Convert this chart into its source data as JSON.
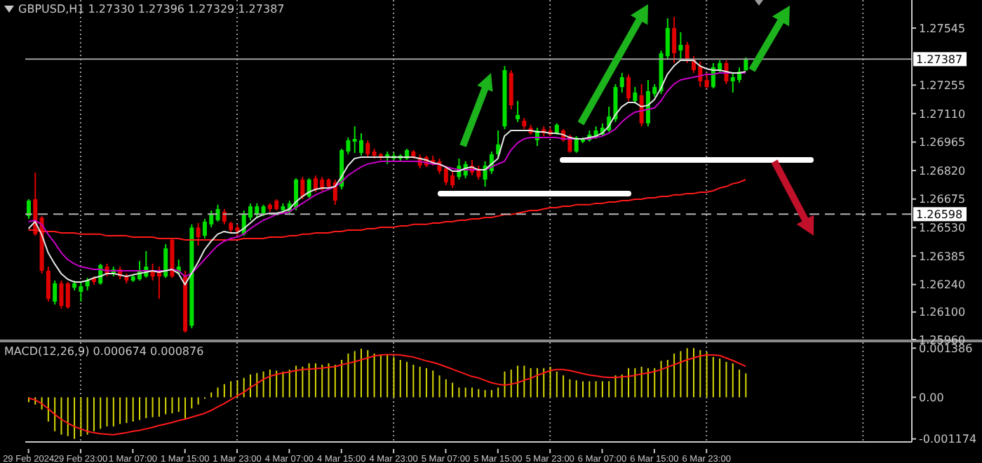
{
  "chart_data": [
    {
      "type": "candlestick",
      "title": "GBPUSD,H1 1.27330 1.27396 1.27329 1.27387",
      "categories": [
        null,
        null,
        null,
        null,
        null,
        null,
        null,
        null,
        null,
        null,
        null,
        null,
        null,
        null,
        null,
        null,
        null,
        null,
        null,
        null,
        null,
        null,
        null,
        null,
        null,
        null,
        null,
        null,
        null,
        null,
        null,
        null,
        null,
        null,
        null,
        null,
        null,
        null,
        null,
        null,
        null,
        null,
        null,
        null,
        null,
        null,
        null,
        null,
        null,
        null,
        null,
        null,
        null,
        null,
        null,
        null,
        null,
        null,
        null,
        null,
        null,
        null,
        null,
        null,
        null,
        null,
        null,
        null,
        null,
        null,
        null,
        null,
        null,
        null,
        null,
        null,
        null,
        null,
        null,
        null,
        null,
        null,
        null,
        null,
        null,
        null,
        null,
        null,
        null,
        null,
        null,
        null,
        null,
        null,
        null,
        null,
        null,
        null,
        null,
        null,
        null,
        null,
        null,
        null,
        null,
        null,
        null,
        null,
        null,
        null,
        null,
        null,
        null,
        null,
        null,
        null,
        null,
        null,
        null,
        null,
        null,
        null,
        null,
        null,
        null,
        null,
        null,
        null,
        null,
        null,
        null,
        null,
        null,
        null,
        null,
        null
      ],
      "ohlc": [
        [
          1.26588,
          1.26674,
          1.26574,
          1.26667
        ],
        [
          1.26674,
          1.2681,
          1.26488,
          1.26496
        ],
        [
          1.26581,
          1.26588,
          1.26296,
          1.2631
        ],
        [
          1.2631,
          1.26331,
          1.26153,
          1.26167
        ],
        [
          1.26153,
          1.2626,
          1.26138,
          1.26246
        ],
        [
          1.26246,
          1.2626,
          1.26117,
          1.26131
        ],
        [
          1.26246,
          1.26253,
          1.26117,
          1.26124
        ],
        [
          1.26224,
          1.2626,
          1.2621,
          1.26246
        ],
        [
          1.26203,
          1.26253,
          1.26153,
          1.26231
        ],
        [
          1.26231,
          1.26274,
          1.2621,
          1.2626
        ],
        [
          1.26274,
          1.26281,
          1.26239,
          1.26253
        ],
        [
          1.26246,
          1.26346,
          1.26239,
          1.26339
        ],
        [
          1.26331,
          1.26346,
          1.26281,
          1.26296
        ],
        [
          1.26296,
          1.26331,
          1.26281,
          1.26317
        ],
        [
          1.26317,
          1.26331,
          1.26267,
          1.26281
        ],
        [
          1.26281,
          1.26296,
          1.26246,
          1.2626
        ],
        [
          1.2626,
          1.26289,
          1.26253,
          1.26281
        ],
        [
          1.26267,
          1.2636,
          1.2626,
          1.2631
        ],
        [
          1.26281,
          1.2641,
          1.26274,
          1.26331
        ],
        [
          1.2631,
          1.26346,
          1.2626,
          1.26281
        ],
        [
          1.2631,
          1.26331,
          1.26167,
          1.26281
        ],
        [
          1.26281,
          1.26445,
          1.26274,
          1.26424
        ],
        [
          1.26467,
          1.26474,
          1.26274,
          1.26281
        ],
        [
          1.26296,
          1.26367,
          1.26289,
          1.26331
        ],
        [
          1.26281,
          1.2631,
          1.25995,
          1.26002
        ],
        [
          1.2603,
          1.26546,
          1.26017,
          1.2653
        ],
        [
          1.2653,
          1.26553,
          1.26438,
          1.26481
        ],
        [
          1.26488,
          1.26574,
          1.26474,
          1.2656
        ],
        [
          1.26546,
          1.26617,
          1.26531,
          1.26603
        ],
        [
          1.26567,
          1.26646,
          1.2656,
          1.26624
        ],
        [
          1.2661,
          1.26624,
          1.26546,
          1.2656
        ],
        [
          1.26553,
          1.2656,
          1.26503,
          1.26517
        ],
        [
          1.2653,
          1.26546,
          1.26488,
          1.2651
        ],
        [
          1.26496,
          1.26617,
          1.26488,
          1.26596
        ],
        [
          1.26581,
          1.26653,
          1.26567,
          1.26638
        ],
        [
          1.26596,
          1.26653,
          1.26581,
          1.26638
        ],
        [
          1.26603,
          1.26646,
          1.26588,
          1.26638
        ],
        [
          1.26646,
          1.26653,
          1.2661,
          1.26624
        ],
        [
          1.26667,
          1.26674,
          1.26617,
          1.26624
        ],
        [
          1.26617,
          1.26653,
          1.26603,
          1.26638
        ],
        [
          1.2661,
          1.26667,
          1.26596,
          1.26653
        ],
        [
          1.26631,
          1.26781,
          1.26617,
          1.26774
        ],
        [
          1.26774,
          1.26788,
          1.26674,
          1.26688
        ],
        [
          1.26688,
          1.26781,
          1.26681,
          1.26774
        ],
        [
          1.26781,
          1.26795,
          1.2671,
          1.26724
        ],
        [
          1.26774,
          1.26788,
          1.26717,
          1.26724
        ],
        [
          1.26774,
          1.26781,
          1.26724,
          1.26738
        ],
        [
          1.2676,
          1.26774,
          1.26646,
          1.26667
        ],
        [
          1.26738,
          1.26931,
          1.26724,
          1.26924
        ],
        [
          1.26917,
          1.26988,
          1.26903,
          1.26974
        ],
        [
          1.26967,
          1.27045,
          1.2691,
          1.26981
        ],
        [
          1.2691,
          1.2701,
          1.26896,
          1.26974
        ],
        [
          1.2696,
          1.26974,
          1.26888,
          1.26903
        ],
        [
          1.26917,
          1.26931,
          1.26881,
          1.26896
        ],
        [
          1.26903,
          1.2691,
          1.26874,
          1.26888
        ],
        [
          1.26888,
          1.26917,
          1.26853,
          1.26903
        ],
        [
          1.26881,
          1.2691,
          1.26874,
          1.26896
        ],
        [
          1.26881,
          1.26903,
          1.26867,
          1.26896
        ],
        [
          1.26881,
          1.26931,
          1.26874,
          1.26924
        ],
        [
          1.26917,
          1.26924,
          1.26881,
          1.26888
        ],
        [
          1.26888,
          1.26903,
          1.26831,
          1.26845
        ],
        [
          1.26888,
          1.26896,
          1.26838,
          1.26845
        ],
        [
          1.26874,
          1.26896,
          1.26845,
          1.26853
        ],
        [
          1.26867,
          1.26881,
          1.26803,
          1.26817
        ],
        [
          1.26831,
          1.26845,
          1.26745,
          1.2676
        ],
        [
          1.26795,
          1.26817,
          1.26731,
          1.26745
        ],
        [
          1.26788,
          1.26881,
          1.26774,
          1.26845
        ],
        [
          1.26795,
          1.26867,
          1.26781,
          1.26853
        ],
        [
          1.26845,
          1.26874,
          1.26795,
          1.2681
        ],
        [
          1.26831,
          1.26845,
          1.26774,
          1.26788
        ],
        [
          1.26774,
          1.26867,
          1.26738,
          1.26845
        ],
        [
          1.26817,
          1.26917,
          1.26803,
          1.26903
        ],
        [
          1.26903,
          1.27024,
          1.26888,
          1.26953
        ],
        [
          1.27045,
          1.27352,
          1.27031,
          1.27331
        ],
        [
          1.27317,
          1.27331,
          1.27131,
          1.27152
        ],
        [
          1.27081,
          1.27174,
          1.27067,
          1.27103
        ],
        [
          1.27074,
          1.27088,
          1.27031,
          1.27045
        ],
        [
          1.27038,
          1.27053,
          1.27003,
          1.2701
        ],
        [
          1.26974,
          1.27038,
          1.26945,
          1.27024
        ],
        [
          1.27031,
          1.27045,
          1.26995,
          1.2701
        ],
        [
          1.27024,
          1.27038,
          1.26995,
          1.27003
        ],
        [
          1.2701,
          1.2706,
          1.27003,
          1.27053
        ],
        [
          1.27024,
          1.27031,
          1.26967,
          1.26974
        ],
        [
          1.26995,
          1.27003,
          1.2691,
          1.26917
        ],
        [
          1.26917,
          1.26995,
          1.2691,
          1.26988
        ],
        [
          1.26967,
          1.26988,
          1.2696,
          1.26981
        ],
        [
          1.26974,
          1.27024,
          1.26967,
          1.27003
        ],
        [
          1.26988,
          1.27045,
          1.26981,
          1.27024
        ],
        [
          1.27003,
          1.2706,
          1.26995,
          1.27038
        ],
        [
          1.27024,
          1.27145,
          1.27017,
          1.27095
        ],
        [
          1.27081,
          1.2726,
          1.27067,
          1.27245
        ],
        [
          1.27245,
          1.27317,
          1.27217,
          1.27295
        ],
        [
          1.27295,
          1.2731,
          1.27174,
          1.27188
        ],
        [
          1.27174,
          1.27245,
          1.2716,
          1.27217
        ],
        [
          1.27203,
          1.2726,
          1.27045,
          1.2706
        ],
        [
          1.2706,
          1.27281,
          1.27045,
          1.27224
        ],
        [
          1.2721,
          1.2726,
          1.27195,
          1.27245
        ],
        [
          1.27224,
          1.27431,
          1.2721,
          1.27417
        ],
        [
          1.27402,
          1.27595,
          1.27388,
          1.27545
        ],
        [
          1.27545,
          1.27602,
          1.27367,
          1.27417
        ],
        [
          1.27431,
          1.27524,
          1.27388,
          1.2746
        ],
        [
          1.2746,
          1.27474,
          1.27367,
          1.27388
        ],
        [
          1.27388,
          1.27402,
          1.27317,
          1.27331
        ],
        [
          1.27352,
          1.27374,
          1.27245,
          1.27274
        ],
        [
          1.27281,
          1.27317,
          1.27238,
          1.27245
        ],
        [
          1.27245,
          1.27367,
          1.27238,
          1.27346
        ],
        [
          1.27331,
          1.27381,
          1.27317,
          1.27367
        ],
        [
          1.27367,
          1.27381,
          1.2726,
          1.27274
        ],
        [
          1.27274,
          1.27317,
          1.27217,
          1.27295
        ],
        [
          1.27281,
          1.27345,
          1.27267,
          1.27324
        ],
        [
          1.2733,
          1.27396,
          1.27329,
          1.27387
        ],
        null,
        null,
        null,
        null,
        null,
        null,
        null,
        null,
        null,
        null,
        null,
        null,
        null,
        null,
        null,
        null,
        null,
        null,
        null,
        null,
        null,
        null,
        null,
        null,
        null
      ],
      "colors": [
        "#00e000",
        "#e00000",
        "#e00000",
        "#e00000",
        "#00e000",
        "#e00000",
        "#e00000",
        "#00e000",
        "#00e000",
        "#00e000",
        "#e00000",
        "#00e000",
        "#e00000",
        "#00e000",
        "#e00000",
        "#e00000",
        "#00e000",
        "#00e000",
        "#00e000",
        "#e00000",
        "#e00000",
        "#00e000",
        "#e00000",
        "#00e000",
        "#e00000",
        "#00e000",
        "#e00000",
        "#00e000",
        "#00e000",
        "#00e000",
        "#e00000",
        "#e00000",
        "#e00000",
        "#00e000",
        "#00e000",
        "#00e000",
        "#00e000",
        "#e00000",
        "#e00000",
        "#00e000",
        "#00e000",
        "#00e000",
        "#e00000",
        "#00e000",
        "#e00000",
        "#e00000",
        "#e00000",
        "#e00000",
        "#00e000",
        "#00e000",
        "#00e000",
        "#00e000",
        "#e00000",
        "#e00000",
        "#e00000",
        "#00e000",
        "#00e000",
        "#00e000",
        "#00e000",
        "#e00000",
        "#e00000",
        "#e00000",
        "#e00000",
        "#e00000",
        "#e00000",
        "#e00000",
        "#00e000",
        "#00e000",
        "#e00000",
        "#e00000",
        "#00e000",
        "#00e000",
        "#00e000",
        "#00e000",
        "#e00000",
        "#00e000",
        "#e00000",
        "#e00000",
        "#00e000",
        "#e00000",
        "#e00000",
        "#00e000",
        "#e00000",
        "#e00000",
        "#00e000",
        "#00e000",
        "#00e000",
        "#00e000",
        "#00e000",
        "#00e000",
        "#00e000",
        "#00e000",
        "#e00000",
        "#00e000",
        "#e00000",
        "#00e000",
        "#00e000",
        "#00e000",
        "#00e000",
        "#e00000",
        "#00e000",
        "#e00000",
        "#e00000",
        "#e00000",
        "#e00000",
        "#00e000",
        "#00e000",
        "#e00000",
        "#00e000",
        "#00e000",
        "#00e000",
        null,
        null,
        null,
        null,
        null,
        null,
        null,
        null,
        null,
        null,
        null,
        null,
        null,
        null,
        null,
        null,
        null,
        null,
        null,
        null,
        null,
        null,
        null,
        null,
        null
      ],
      "series": [
        {
          "type": "line",
          "color": "#ff1a1a",
          "values": [
            1.26517,
            1.26517,
            1.2651,
            1.2651,
            1.2651,
            1.26503,
            1.26503,
            1.26503,
            1.26496,
            1.26496,
            1.26496,
            1.26496,
            1.26488,
            1.26488,
            1.26488,
            1.26488,
            1.26481,
            1.26481,
            1.26481,
            1.26481,
            1.26474,
            1.26474,
            1.26474,
            1.26474,
            1.26467,
            1.26467,
            1.26467,
            1.26467,
            1.26467,
            1.26467,
            1.26467,
            1.26467,
            1.26467,
            1.26474,
            1.26474,
            1.26474,
            1.26474,
            1.26481,
            1.26481,
            1.26481,
            1.26488,
            1.26488,
            1.26496,
            1.26496,
            1.26503,
            1.26503,
            1.26503,
            1.2651,
            1.2651,
            1.26517,
            1.26517,
            1.26517,
            1.26524,
            1.26524,
            1.26531,
            1.26531,
            1.26531,
            1.26538,
            1.26538,
            1.26546,
            1.26546,
            1.26546,
            1.26553,
            1.26553,
            1.2656,
            1.2656,
            1.26567,
            1.26567,
            1.26574,
            1.26574,
            1.26581,
            1.26581,
            1.26588,
            1.26596,
            1.26596,
            1.26603,
            1.2661,
            1.26617,
            1.26617,
            1.26624,
            1.26631,
            1.26631,
            1.26638,
            1.26638,
            1.26646,
            1.26646,
            1.26646,
            1.26653,
            1.26653,
            1.2666,
            1.2666,
            1.26667,
            1.26667,
            1.26674,
            1.26674,
            1.26681,
            1.26681,
            1.26688,
            1.26688,
            1.26696,
            1.26696,
            1.26703,
            1.26703,
            1.2671,
            1.2671,
            1.26717,
            1.26731,
            1.26738,
            1.26753,
            1.2676,
            1.26774,
            null,
            null,
            null,
            null,
            null,
            null,
            null,
            null,
            null,
            null,
            null,
            null,
            null,
            null,
            null,
            null,
            null,
            null,
            null,
            null,
            null,
            null,
            null,
            null,
            null
          ]
        },
        {
          "type": "line",
          "color": "#c800c8",
          "values": [
            1.2656,
            1.26567,
            1.26546,
            1.26496,
            1.26453,
            1.26403,
            1.26367,
            1.26346,
            1.26331,
            1.26324,
            1.26317,
            1.26317,
            1.2631,
            1.2631,
            1.2631,
            1.2631,
            1.2631,
            1.2631,
            1.2631,
            1.2631,
            1.2631,
            1.2631,
            1.26317,
            1.2631,
            1.26281,
            1.26296,
            1.26331,
            1.26367,
            1.26403,
            1.26438,
            1.2646,
            1.26474,
            1.26481,
            1.26496,
            1.26524,
            1.26546,
            1.26567,
            1.26581,
            1.26596,
            1.26603,
            1.2661,
            1.26631,
            1.26653,
            1.26674,
            1.26696,
            1.2671,
            1.26724,
            1.26738,
            1.2676,
            1.26795,
            1.26817,
            1.26838,
            1.26853,
            1.2686,
            1.26867,
            1.26867,
            1.26867,
            1.26867,
            1.26867,
            1.26867,
            1.26867,
            1.2686,
            1.26853,
            1.26853,
            1.26838,
            1.26831,
            1.26824,
            1.26824,
            1.26824,
            1.26824,
            1.26824,
            1.26838,
            1.26853,
            1.26867,
            1.26924,
            1.2696,
            1.26981,
            1.26988,
            1.26988,
            1.26988,
            1.26988,
            1.26988,
            1.26981,
            1.26981,
            1.26981,
            1.26981,
            1.26981,
            1.26988,
            1.26995,
            1.2701,
            1.27031,
            1.27067,
            1.27095,
            1.27117,
            1.27124,
            1.27131,
            1.27138,
            1.27174,
            1.27224,
            1.2726,
            1.27281,
            1.27288,
            1.27295,
            1.27302,
            1.2731,
            1.2731,
            1.27317,
            1.27317,
            1.27317,
            1.27317,
            1.27317,
            null,
            null,
            null,
            null,
            null,
            null,
            null,
            null,
            null,
            null,
            null,
            null,
            null,
            null,
            null,
            null,
            null,
            null,
            null,
            null,
            null,
            null,
            null,
            null,
            null
          ]
        },
        {
          "type": "line",
          "color": "#e6e6e6",
          "values": [
            1.26524,
            1.2656,
            1.26496,
            1.26403,
            1.26346,
            1.26296,
            1.26267,
            1.26253,
            1.26253,
            1.2626,
            1.26274,
            1.26281,
            1.26296,
            1.26296,
            1.26289,
            1.26281,
            1.26289,
            1.26296,
            1.26303,
            1.2631,
            1.26303,
            1.2631,
            1.26317,
            1.26296,
            1.26239,
            1.26296,
            1.26353,
            1.26417,
            1.2646,
            1.26496,
            1.2651,
            1.26503,
            1.26503,
            1.26524,
            1.26553,
            1.26581,
            1.26596,
            1.26603,
            1.26603,
            1.2661,
            1.26624,
            1.2666,
            1.26688,
            1.2671,
            1.26724,
            1.26731,
            1.26731,
            1.26738,
            1.26788,
            1.26845,
            1.26881,
            1.26888,
            1.26888,
            1.26888,
            1.26888,
            1.26888,
            1.26888,
            1.26888,
            1.26888,
            1.26888,
            1.26881,
            1.26874,
            1.2686,
            1.26853,
            1.26838,
            1.26817,
            1.26817,
            1.26831,
            1.26838,
            1.26824,
            1.26824,
            1.26853,
            1.26881,
            1.26995,
            1.27024,
            1.27024,
            1.27024,
            1.27024,
            1.27017,
            1.27017,
            1.2701,
            1.2701,
            1.27003,
            1.26988,
            1.26981,
            1.26981,
            1.26988,
            1.26995,
            1.2701,
            1.27045,
            1.27103,
            1.27145,
            1.27167,
            1.27167,
            1.27145,
            1.27152,
            1.27181,
            1.27238,
            1.2731,
            1.27352,
            1.27381,
            1.27381,
            1.27381,
            1.27352,
            1.27338,
            1.27331,
            1.27331,
            1.27324,
            1.27317,
            1.27317,
            1.27324,
            null,
            null,
            null,
            null,
            null,
            null,
            null,
            null,
            null,
            null,
            null,
            null,
            null,
            null,
            null,
            null,
            null,
            null,
            null,
            null,
            null,
            null,
            null,
            null,
            null
          ]
        }
      ],
      "ylim": [
        1.2596,
        1.27688
      ],
      "yticks": [
        {
          "value": 1.27545,
          "label": "1.27545"
        },
        {
          "value": 1.27255,
          "label": "1.27255"
        },
        {
          "value": 1.2711,
          "label": "1.27110"
        },
        {
          "value": 1.26965,
          "label": "1.26965"
        },
        {
          "value": 1.2682,
          "label": "1.26820"
        },
        {
          "value": 1.26675,
          "label": "1.26675"
        },
        {
          "value": 1.2653,
          "label": "1.26530"
        },
        {
          "value": 1.26385,
          "label": "1.26385"
        },
        {
          "value": 1.2624,
          "label": "1.26240"
        },
        {
          "value": 1.261,
          "label": "1.26100"
        },
        {
          "value": 1.2596,
          "label": "1.25960"
        }
      ],
      "ref_lines": [
        {
          "axis": "y",
          "value": 1.27387,
          "label": "1.27387",
          "color": "#a0a0a0",
          "line_style": "solid"
        },
        {
          "axis": "y",
          "value": 1.26598,
          "label": "1.26598",
          "color": "#b4b4b4",
          "line_style": "dashed"
        }
      ],
      "grid": "x",
      "tick_labels": "y"
    },
    {
      "type": "bar",
      "title": "MACD(12,26,9) 0.000674 0.000876",
      "categories": [
        "29 Feb 2024",
        null,
        null,
        null,
        null,
        null,
        null,
        null,
        "29 Feb 23:00",
        null,
        null,
        null,
        null,
        null,
        null,
        null,
        "1 Mar 07:00",
        null,
        null,
        null,
        null,
        null,
        null,
        null,
        "1 Mar 15:00",
        null,
        null,
        null,
        null,
        null,
        null,
        null,
        "1 Mar 23:00",
        null,
        null,
        null,
        null,
        null,
        null,
        null,
        "4 Mar 07:00",
        null,
        null,
        null,
        null,
        null,
        null,
        null,
        "4 Mar 15:00",
        null,
        null,
        null,
        null,
        null,
        null,
        null,
        "4 Mar 23:00",
        null,
        null,
        null,
        null,
        null,
        null,
        null,
        "5 Mar 07:00",
        null,
        null,
        null,
        null,
        null,
        null,
        null,
        "5 Mar 15:00",
        null,
        null,
        null,
        null,
        null,
        null,
        null,
        "5 Mar 23:00",
        null,
        null,
        null,
        null,
        null,
        null,
        null,
        "6 Mar 07:00",
        null,
        null,
        null,
        null,
        null,
        null,
        null,
        "6 Mar 15:00",
        null,
        null,
        null,
        null,
        null,
        null,
        null,
        "6 Mar 23:00",
        null,
        null,
        null,
        null,
        null,
        null,
        null,
        null,
        null,
        null,
        null,
        null,
        null,
        null,
        null,
        null,
        null,
        null,
        null,
        null,
        null,
        null,
        null,
        null,
        null,
        null,
        null,
        null,
        null,
        null,
        null
      ],
      "series": [
        {
          "type": "bar",
          "color": "#d8d800",
          "values": [
            -0.000137,
            -0.000206,
            -0.000343,
            -0.000685,
            -0.000959,
            -0.001055,
            -0.001096,
            -0.001174,
            -0.001096,
            -0.001055,
            -0.000959,
            -0.000891,
            -0.000822,
            -0.000822,
            -0.000754,
            -0.000726,
            -0.000685,
            -0.000644,
            -0.000589,
            -0.000562,
            -0.000548,
            -0.00048,
            -0.000452,
            -0.000411,
            -0.000617,
            -0.000315,
            -0.000206,
            -4.1e-05,
            0.000137,
            0.000274,
            0.00037,
            0.000452,
            0.00048,
            0.000548,
            0.000644,
            0.000685,
            0.000726,
            0.000781,
            0.000754,
            0.000726,
            0.000781,
            0.000891,
            0.000863,
            0.000959,
            0.000959,
            0.000918,
            0.000959,
            0.000918,
            0.001055,
            0.001233,
            0.001302,
            0.00137,
            0.001329,
            0.001233,
            0.001192,
            0.001192,
            0.001137,
            0.001055,
            0.001,
            0.000918,
            0.000863,
            0.000822,
            0.000754,
            0.000617,
            0.000507,
            0.000411,
            0.000274,
            0.000274,
            0.000274,
            0.000233,
            0.000206,
            0.000206,
            0.000274,
            0.000726,
            0.000781,
            0.000891,
            0.000891,
            0.000822,
            0.000822,
            0.000822,
            0.000863,
            0.000726,
            0.000617,
            0.000507,
            0.00048,
            0.000452,
            0.000452,
            0.000452,
            0.000452,
            0.000452,
            0.000617,
            0.000644,
            0.000822,
            0.000822,
            0.000863,
            0.000822,
            0.000822,
            0.001028,
            0.001055,
            0.001233,
            0.001302,
            0.001386,
            0.001386,
            0.001329,
            0.001274,
            0.001137,
            0.001096,
            0.001,
            0.000959,
            0.000781,
            0.000674,
            null,
            null,
            null,
            null,
            null,
            null,
            null,
            null,
            null,
            null,
            null,
            null,
            null,
            null,
            null,
            null,
            null,
            null,
            null,
            null,
            null,
            null,
            null,
            null,
            null
          ]
        },
        {
          "type": "line",
          "color": "#ff1a1a",
          "values": [
            -2.7e-05,
            -6.9e-05,
            -0.000178,
            -0.000315,
            -0.00048,
            -0.000617,
            -0.000726,
            -0.000822,
            -0.000891,
            -0.000959,
            -0.001,
            -0.001028,
            -0.001041,
            -0.001055,
            -0.001028,
            -0.001,
            -0.000959,
            -0.000932,
            -0.000891,
            -0.000849,
            -0.000795,
            -0.000754,
            -0.000712,
            -0.000658,
            -0.000617,
            -0.000562,
            -0.000507,
            -0.000452,
            -0.00037,
            -0.000274,
            -0.000178,
            -6.9e-05,
            4.1e-05,
            0.000137,
            0.000274,
            0.000384,
            0.000507,
            0.000589,
            0.000644,
            0.000685,
            0.000712,
            0.000754,
            0.000781,
            0.000795,
            0.000808,
            0.000822,
            0.000849,
            0.000863,
            0.000918,
            0.000959,
            0.001,
            0.001055,
            0.00111,
            0.001165,
            0.001192,
            0.001206,
            0.001206,
            0.001192,
            0.001165,
            0.001137,
            0.001082,
            0.001028,
            0.000986,
            0.000932,
            0.000863,
            0.000795,
            0.000726,
            0.000658,
            0.000589,
            0.000548,
            0.00048,
            0.000411,
            0.00037,
            0.000343,
            0.00037,
            0.000411,
            0.00048,
            0.000534,
            0.000617,
            0.000685,
            0.000754,
            0.000781,
            0.000781,
            0.000754,
            0.000712,
            0.000671,
            0.00063,
            0.000603,
            0.000575,
            0.000562,
            0.000562,
            0.000575,
            0.000589,
            0.000617,
            0.000658,
            0.000685,
            0.000726,
            0.000781,
            0.000849,
            0.000918,
            0.000986,
            0.001055,
            0.00111,
            0.001165,
            0.001192,
            0.001192,
            0.001178,
            0.00111,
            0.00104,
            0.00096,
            0.000876,
            null,
            null,
            null,
            null,
            null,
            null,
            null,
            null,
            null,
            null,
            null,
            null,
            null,
            null,
            null,
            null,
            null,
            null,
            null,
            null,
            null,
            null,
            null,
            null,
            null
          ]
        }
      ],
      "ylim": [
        -0.00126,
        0.00155
      ],
      "yticks": [
        0.001386,
        {
          "value": 0,
          "label": "0.00"
        },
        -0.001174
      ],
      "grid": "x"
    }
  ]
}
